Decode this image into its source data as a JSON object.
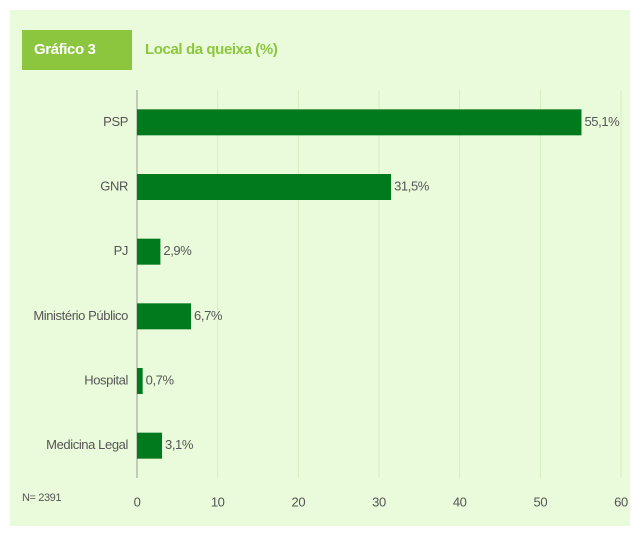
{
  "chart_data": {
    "type": "bar",
    "orientation": "horizontal",
    "badge": "Gráfico 3",
    "title": "Local da queixa (%)",
    "note": "N= 2391",
    "categories": [
      "PSP",
      "GNR",
      "PJ",
      "Ministério Público",
      "Hospital",
      "Medicina Legal"
    ],
    "values": [
      55.1,
      31.5,
      2.9,
      6.7,
      0.7,
      3.1
    ],
    "value_labels": [
      "55,1%",
      "31,5%",
      "2,9%",
      "6,7%",
      "0,7%",
      "3,1%"
    ],
    "color": "#007a1c",
    "xlim": [
      0,
      60
    ],
    "xticks": [
      0,
      10,
      20,
      30,
      40,
      50,
      60
    ],
    "grid": true
  }
}
